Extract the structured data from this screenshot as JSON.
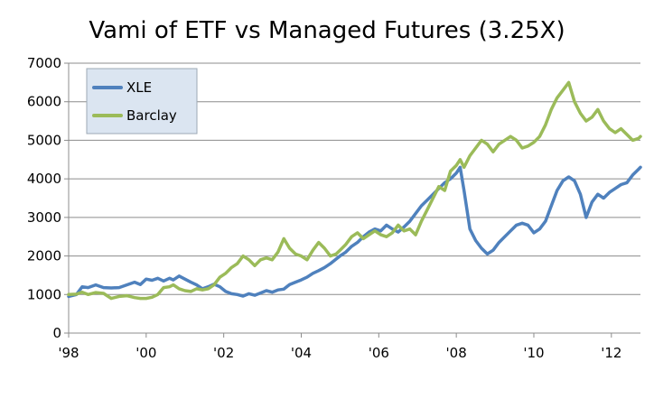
{
  "chart_data": {
    "type": "line",
    "title": "Vami  of ETF vs Managed Futures (3.25X)",
    "xlabel": "",
    "ylabel": "",
    "xlim": [
      1998.0,
      2012.75
    ],
    "ylim": [
      0,
      7000
    ],
    "y_ticks": [
      0,
      1000,
      2000,
      3000,
      4000,
      5000,
      6000,
      7000
    ],
    "y_tick_labels": [
      "0",
      "1000",
      "2000",
      "3000",
      "4000",
      "5000",
      "6000",
      "7000"
    ],
    "x_ticks": [
      1998,
      2000,
      2002,
      2004,
      2006,
      2008,
      2010,
      2012
    ],
    "x_tick_labels": [
      "'98",
      "'00",
      "'02",
      "'04",
      "'06",
      "'08",
      "'10",
      "'12"
    ],
    "grid": "horizontal",
    "legend_position": "top-left",
    "series": [
      {
        "name": "XLE",
        "color": "#4F81BD",
        "points": [
          [
            1998.0,
            950
          ],
          [
            1998.2,
            1000
          ],
          [
            1998.35,
            1200
          ],
          [
            1998.5,
            1180
          ],
          [
            1998.7,
            1250
          ],
          [
            1998.9,
            1180
          ],
          [
            1999.1,
            1170
          ],
          [
            1999.3,
            1180
          ],
          [
            1999.5,
            1250
          ],
          [
            1999.7,
            1320
          ],
          [
            1999.85,
            1260
          ],
          [
            2000.0,
            1400
          ],
          [
            2000.15,
            1370
          ],
          [
            2000.3,
            1420
          ],
          [
            2000.45,
            1350
          ],
          [
            2000.6,
            1420
          ],
          [
            2000.7,
            1380
          ],
          [
            2000.85,
            1480
          ],
          [
            2001.0,
            1400
          ],
          [
            2001.15,
            1320
          ],
          [
            2001.3,
            1250
          ],
          [
            2001.45,
            1150
          ],
          [
            2001.6,
            1200
          ],
          [
            2001.75,
            1270
          ],
          [
            2001.9,
            1200
          ],
          [
            2002.05,
            1080
          ],
          [
            2002.2,
            1020
          ],
          [
            2002.35,
            1000
          ],
          [
            2002.5,
            960
          ],
          [
            2002.65,
            1020
          ],
          [
            2002.8,
            980
          ],
          [
            2002.95,
            1040
          ],
          [
            2003.1,
            1100
          ],
          [
            2003.25,
            1060
          ],
          [
            2003.4,
            1120
          ],
          [
            2003.55,
            1140
          ],
          [
            2003.7,
            1260
          ],
          [
            2003.85,
            1320
          ],
          [
            2004.0,
            1380
          ],
          [
            2004.15,
            1450
          ],
          [
            2004.3,
            1550
          ],
          [
            2004.45,
            1620
          ],
          [
            2004.6,
            1700
          ],
          [
            2004.75,
            1800
          ],
          [
            2004.9,
            1920
          ],
          [
            2005.0,
            2000
          ],
          [
            2005.15,
            2100
          ],
          [
            2005.3,
            2250
          ],
          [
            2005.45,
            2350
          ],
          [
            2005.6,
            2500
          ],
          [
            2005.75,
            2620
          ],
          [
            2005.9,
            2700
          ],
          [
            2006.05,
            2650
          ],
          [
            2006.2,
            2800
          ],
          [
            2006.35,
            2700
          ],
          [
            2006.5,
            2620
          ],
          [
            2006.65,
            2750
          ],
          [
            2006.8,
            2900
          ],
          [
            2006.95,
            3100
          ],
          [
            2007.1,
            3300
          ],
          [
            2007.25,
            3450
          ],
          [
            2007.4,
            3600
          ],
          [
            2007.55,
            3750
          ],
          [
            2007.7,
            3900
          ],
          [
            2007.85,
            4000
          ],
          [
            2008.0,
            4150
          ],
          [
            2008.1,
            4300
          ],
          [
            2008.2,
            3700
          ],
          [
            2008.35,
            2700
          ],
          [
            2008.5,
            2400
          ],
          [
            2008.65,
            2200
          ],
          [
            2008.8,
            2050
          ],
          [
            2008.95,
            2150
          ],
          [
            2009.1,
            2350
          ],
          [
            2009.25,
            2500
          ],
          [
            2009.4,
            2650
          ],
          [
            2009.55,
            2800
          ],
          [
            2009.7,
            2850
          ],
          [
            2009.85,
            2800
          ],
          [
            2010.0,
            2600
          ],
          [
            2010.15,
            2700
          ],
          [
            2010.3,
            2900
          ],
          [
            2010.45,
            3300
          ],
          [
            2010.6,
            3700
          ],
          [
            2010.75,
            3950
          ],
          [
            2010.9,
            4050
          ],
          [
            2011.05,
            3950
          ],
          [
            2011.2,
            3600
          ],
          [
            2011.35,
            3000
          ],
          [
            2011.5,
            3400
          ],
          [
            2011.65,
            3600
          ],
          [
            2011.8,
            3500
          ],
          [
            2011.95,
            3650
          ],
          [
            2012.1,
            3750
          ],
          [
            2012.25,
            3850
          ],
          [
            2012.4,
            3900
          ],
          [
            2012.55,
            4100
          ],
          [
            2012.7,
            4250
          ],
          [
            2012.75,
            4300
          ]
        ]
      },
      {
        "name": "Barclay",
        "color": "#9BBB59",
        "points": [
          [
            1998.0,
            1000
          ],
          [
            1998.2,
            1010
          ],
          [
            1998.35,
            1060
          ],
          [
            1998.5,
            1000
          ],
          [
            1998.7,
            1050
          ],
          [
            1998.9,
            1030
          ],
          [
            1999.1,
            900
          ],
          [
            1999.3,
            950
          ],
          [
            1999.5,
            970
          ],
          [
            1999.7,
            920
          ],
          [
            1999.85,
            900
          ],
          [
            2000.0,
            900
          ],
          [
            2000.15,
            930
          ],
          [
            2000.3,
            1000
          ],
          [
            2000.45,
            1180
          ],
          [
            2000.6,
            1200
          ],
          [
            2000.7,
            1250
          ],
          [
            2000.85,
            1150
          ],
          [
            2001.0,
            1100
          ],
          [
            2001.15,
            1080
          ],
          [
            2001.3,
            1150
          ],
          [
            2001.45,
            1120
          ],
          [
            2001.6,
            1150
          ],
          [
            2001.75,
            1250
          ],
          [
            2001.9,
            1450
          ],
          [
            2002.05,
            1550
          ],
          [
            2002.2,
            1700
          ],
          [
            2002.35,
            1800
          ],
          [
            2002.5,
            2000
          ],
          [
            2002.65,
            1900
          ],
          [
            2002.8,
            1750
          ],
          [
            2002.95,
            1900
          ],
          [
            2003.1,
            1950
          ],
          [
            2003.25,
            1900
          ],
          [
            2003.4,
            2100
          ],
          [
            2003.55,
            2450
          ],
          [
            2003.7,
            2200
          ],
          [
            2003.85,
            2050
          ],
          [
            2004.0,
            2000
          ],
          [
            2004.15,
            1900
          ],
          [
            2004.3,
            2150
          ],
          [
            2004.45,
            2350
          ],
          [
            2004.6,
            2200
          ],
          [
            2004.75,
            2000
          ],
          [
            2004.9,
            2050
          ],
          [
            2005.0,
            2150
          ],
          [
            2005.15,
            2300
          ],
          [
            2005.3,
            2500
          ],
          [
            2005.45,
            2600
          ],
          [
            2005.6,
            2450
          ],
          [
            2005.75,
            2550
          ],
          [
            2005.9,
            2650
          ],
          [
            2006.05,
            2550
          ],
          [
            2006.2,
            2500
          ],
          [
            2006.35,
            2600
          ],
          [
            2006.5,
            2800
          ],
          [
            2006.65,
            2650
          ],
          [
            2006.8,
            2700
          ],
          [
            2006.95,
            2550
          ],
          [
            2007.1,
            2900
          ],
          [
            2007.25,
            3200
          ],
          [
            2007.4,
            3500
          ],
          [
            2007.55,
            3800
          ],
          [
            2007.7,
            3700
          ],
          [
            2007.85,
            4200
          ],
          [
            2008.0,
            4350
          ],
          [
            2008.1,
            4500
          ],
          [
            2008.2,
            4300
          ],
          [
            2008.35,
            4600
          ],
          [
            2008.5,
            4800
          ],
          [
            2008.65,
            5000
          ],
          [
            2008.8,
            4900
          ],
          [
            2008.95,
            4700
          ],
          [
            2009.1,
            4900
          ],
          [
            2009.25,
            5000
          ],
          [
            2009.4,
            5100
          ],
          [
            2009.55,
            5000
          ],
          [
            2009.7,
            4800
          ],
          [
            2009.85,
            4850
          ],
          [
            2010.0,
            4950
          ],
          [
            2010.15,
            5100
          ],
          [
            2010.3,
            5400
          ],
          [
            2010.45,
            5800
          ],
          [
            2010.6,
            6100
          ],
          [
            2010.75,
            6300
          ],
          [
            2010.9,
            6500
          ],
          [
            2011.05,
            6000
          ],
          [
            2011.2,
            5700
          ],
          [
            2011.35,
            5500
          ],
          [
            2011.5,
            5600
          ],
          [
            2011.65,
            5800
          ],
          [
            2011.8,
            5500
          ],
          [
            2011.95,
            5300
          ],
          [
            2012.1,
            5200
          ],
          [
            2012.25,
            5300
          ],
          [
            2012.4,
            5150
          ],
          [
            2012.55,
            5000
          ],
          [
            2012.7,
            5050
          ],
          [
            2012.75,
            5100
          ]
        ]
      }
    ]
  }
}
